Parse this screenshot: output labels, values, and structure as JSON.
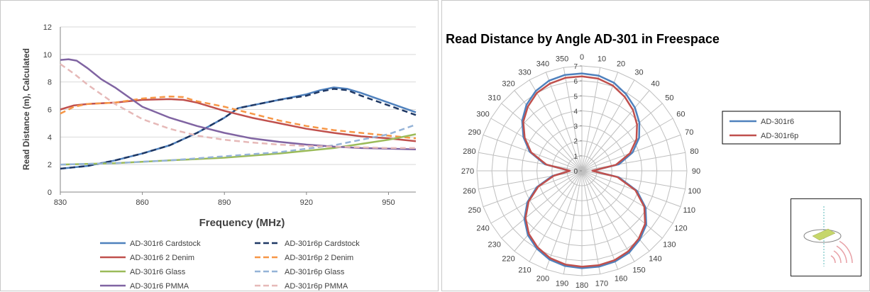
{
  "chart_data": [
    {
      "type": "line",
      "title": "",
      "xlabel": "Frequency (MHz)",
      "ylabel": "Read Distance (m), Calculated",
      "xlim": [
        830,
        960
      ],
      "ylim": [
        0,
        12
      ],
      "x_ticks": [
        830,
        860,
        890,
        920,
        950
      ],
      "y_ticks": [
        0,
        2,
        4,
        6,
        8,
        10,
        12
      ],
      "grid": "horizontal",
      "legend_position": "bottom",
      "series": [
        {
          "name": "AD-301r6 Cardstock",
          "color": "#4f81bd",
          "dash": "solid",
          "x": [
            830,
            840,
            850,
            860,
            870,
            880,
            890,
            895,
            900,
            910,
            920,
            925,
            930,
            935,
            940,
            950,
            960
          ],
          "y": [
            1.7,
            1.9,
            2.3,
            2.8,
            3.4,
            4.3,
            5.4,
            6.1,
            6.3,
            6.7,
            7.1,
            7.4,
            7.6,
            7.5,
            7.2,
            6.5,
            5.8
          ]
        },
        {
          "name": "AD-301r6p Cardstock",
          "color": "#1f3864",
          "dash": "dashed",
          "x": [
            830,
            840,
            850,
            860,
            870,
            880,
            890,
            895,
            900,
            910,
            920,
            925,
            930,
            935,
            940,
            950,
            960
          ],
          "y": [
            1.7,
            1.9,
            2.3,
            2.8,
            3.4,
            4.3,
            5.4,
            6.1,
            6.3,
            6.7,
            7.0,
            7.3,
            7.5,
            7.4,
            7.0,
            6.3,
            5.6
          ]
        },
        {
          "name": "AD-301r6 2 Denim",
          "color": "#c0504d",
          "dash": "solid",
          "x": [
            830,
            835,
            840,
            850,
            860,
            870,
            875,
            880,
            890,
            900,
            910,
            920,
            930,
            940,
            950,
            960
          ],
          "y": [
            6.0,
            6.3,
            6.4,
            6.5,
            6.7,
            6.75,
            6.7,
            6.5,
            5.9,
            5.4,
            5.0,
            4.6,
            4.3,
            4.05,
            3.9,
            3.7
          ]
        },
        {
          "name": "AD-301r6p 2 Denim",
          "color": "#f79646",
          "dash": "dashed",
          "x": [
            830,
            835,
            840,
            850,
            860,
            870,
            875,
            880,
            890,
            900,
            910,
            920,
            930,
            940,
            950,
            960
          ],
          "y": [
            5.7,
            6.2,
            6.4,
            6.5,
            6.8,
            6.95,
            6.9,
            6.6,
            6.2,
            5.7,
            5.2,
            4.8,
            4.5,
            4.3,
            4.1,
            3.9
          ]
        },
        {
          "name": "AD-301r6 Glass",
          "color": "#9bbb59",
          "dash": "solid",
          "x": [
            830,
            850,
            870,
            890,
            910,
            930,
            950,
            960
          ],
          "y": [
            2.0,
            2.1,
            2.3,
            2.5,
            2.8,
            3.2,
            3.8,
            4.2
          ]
        },
        {
          "name": "AD-301r6p Glass",
          "color": "#95b3d7",
          "dash": "dashed",
          "x": [
            830,
            850,
            870,
            890,
            910,
            930,
            950,
            960
          ],
          "y": [
            2.0,
            2.1,
            2.3,
            2.6,
            2.9,
            3.4,
            4.2,
            4.9
          ]
        },
        {
          "name": "AD-301r6 PMMA",
          "color": "#8064a2",
          "dash": "solid",
          "x": [
            830,
            833,
            836,
            840,
            845,
            850,
            860,
            870,
            880,
            890,
            900,
            910,
            920,
            930,
            940,
            950,
            960
          ],
          "y": [
            9.6,
            9.65,
            9.55,
            9.0,
            8.2,
            7.6,
            6.2,
            5.4,
            4.8,
            4.3,
            3.9,
            3.65,
            3.45,
            3.3,
            3.2,
            3.15,
            3.1
          ]
        },
        {
          "name": "AD-301r6p PMMA",
          "color": "#e6b9b8",
          "dash": "dashed",
          "x": [
            830,
            835,
            840,
            850,
            860,
            870,
            880,
            890,
            900,
            910,
            920,
            930,
            940,
            950,
            960
          ],
          "y": [
            9.3,
            8.6,
            7.8,
            6.4,
            5.3,
            4.6,
            4.1,
            3.8,
            3.6,
            3.45,
            3.35,
            3.3,
            3.25,
            3.2,
            3.2
          ]
        }
      ]
    },
    {
      "type": "line",
      "subtype": "polar",
      "title": "Read Distance by Angle AD-301 in Freespace",
      "r_lim": [
        0,
        7
      ],
      "r_ticks": [
        0,
        1,
        2,
        3,
        4,
        5,
        6,
        7
      ],
      "angle_ticks": [
        0,
        10,
        20,
        30,
        40,
        50,
        60,
        70,
        80,
        90,
        100,
        110,
        120,
        130,
        140,
        150,
        160,
        170,
        180,
        190,
        200,
        210,
        220,
        230,
        240,
        250,
        260,
        270,
        280,
        290,
        300,
        310,
        320,
        330,
        340,
        350
      ],
      "angle_direction": "clockwise",
      "zero_angle": "top",
      "legend_position": "right",
      "series": [
        {
          "name": "AD-301r6",
          "color": "#4f81bd",
          "theta": [
            0,
            10,
            20,
            30,
            40,
            50,
            60,
            70,
            80,
            90,
            100,
            110,
            120,
            130,
            140,
            150,
            160,
            170,
            180,
            190,
            200,
            210,
            220,
            230,
            240,
            250,
            260,
            270,
            280,
            290,
            300,
            310,
            320,
            330,
            340,
            350
          ],
          "r": [
            6.5,
            6.45,
            6.25,
            5.9,
            5.5,
            5.0,
            4.4,
            3.6,
            2.5,
            0.7,
            2.5,
            3.9,
            4.9,
            5.6,
            6.0,
            6.3,
            6.45,
            6.5,
            6.5,
            6.45,
            6.3,
            6.0,
            5.6,
            5.0,
            4.2,
            3.2,
            2.0,
            0.8,
            2.5,
            3.7,
            4.5,
            5.2,
            5.75,
            6.15,
            6.4,
            6.5
          ]
        },
        {
          "name": "AD-301r6p",
          "color": "#c0504d",
          "theta": [
            0,
            10,
            20,
            30,
            40,
            50,
            60,
            70,
            80,
            90,
            100,
            110,
            120,
            130,
            140,
            150,
            160,
            170,
            180,
            190,
            200,
            210,
            220,
            230,
            240,
            250,
            260,
            270,
            280,
            290,
            300,
            310,
            320,
            330,
            340,
            350
          ],
          "r": [
            6.3,
            6.25,
            6.05,
            5.7,
            5.3,
            4.8,
            4.2,
            3.4,
            2.3,
            0.7,
            2.4,
            3.8,
            4.8,
            5.5,
            5.9,
            6.2,
            6.35,
            6.4,
            6.4,
            6.35,
            6.2,
            5.9,
            5.5,
            4.9,
            4.1,
            3.1,
            1.9,
            0.8,
            2.4,
            3.6,
            4.4,
            5.1,
            5.6,
            6.0,
            6.2,
            6.3
          ]
        }
      ]
    }
  ],
  "inset": {
    "icon": "tag-orientation-icon",
    "tag_color": "#c6d66a",
    "wave_color": "#e8a0a6",
    "axis_color": "#5ab8b8"
  }
}
